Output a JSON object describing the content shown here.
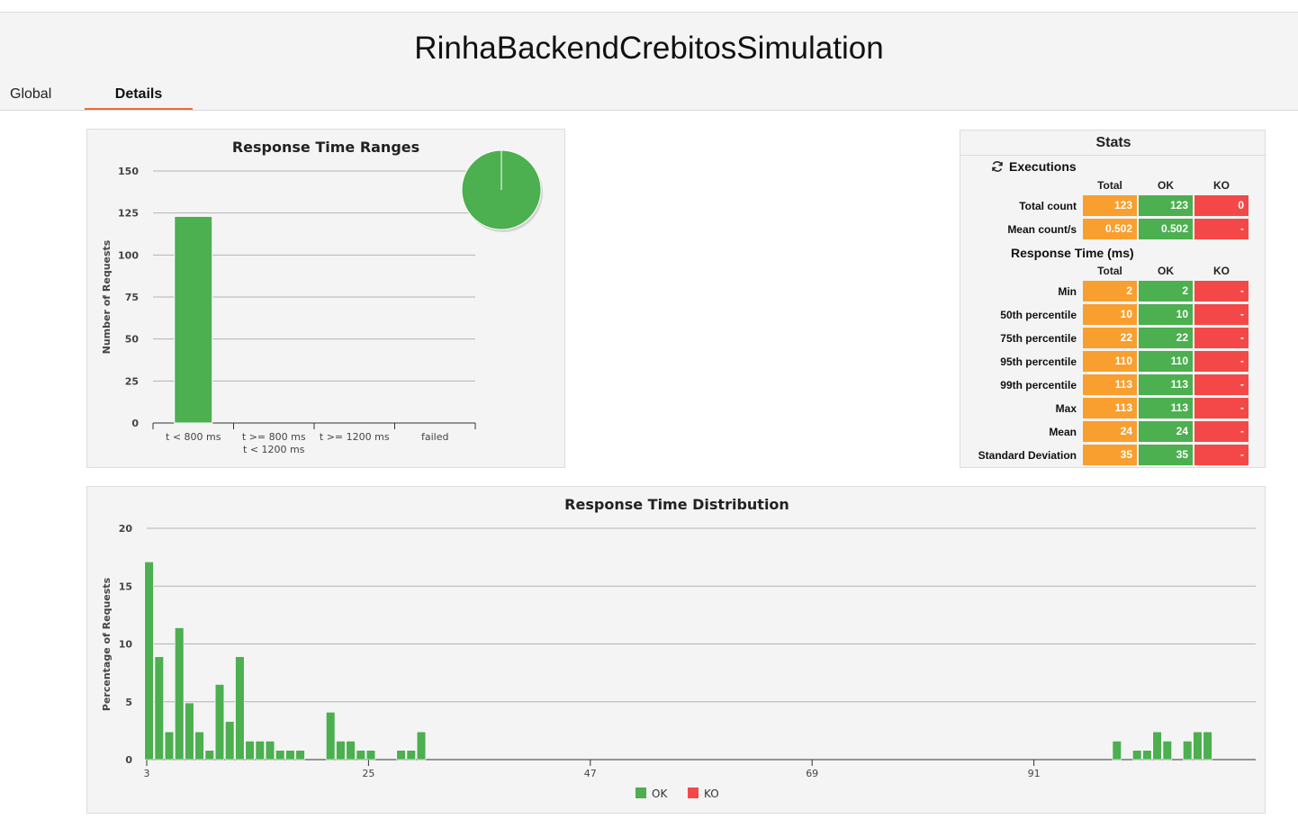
{
  "simulation_title": "RinhaBackendCrebitosSimulation",
  "tabs": [
    {
      "label": "Global"
    },
    {
      "label": "Details"
    }
  ],
  "colors": {
    "ok": "#4caf50",
    "ko": "#f44848",
    "total": "#f89f2f",
    "tab_underline": "#e2703a"
  },
  "stats": {
    "title": "Stats",
    "executions_label": "Executions",
    "response_time_label": "Response Time (ms)",
    "columns": [
      "Total",
      "OK",
      "KO"
    ],
    "executions": [
      {
        "label": "Total count",
        "total": "123",
        "ok": "123",
        "ko": "0"
      },
      {
        "label": "Mean count/s",
        "total": "0.502",
        "ok": "0.502",
        "ko": "-"
      }
    ],
    "response_time": [
      {
        "label": "Min",
        "total": "2",
        "ok": "2",
        "ko": "-"
      },
      {
        "label": "50th percentile",
        "total": "10",
        "ok": "10",
        "ko": "-"
      },
      {
        "label": "75th percentile",
        "total": "22",
        "ok": "22",
        "ko": "-"
      },
      {
        "label": "95th percentile",
        "total": "110",
        "ok": "110",
        "ko": "-"
      },
      {
        "label": "99th percentile",
        "total": "113",
        "ok": "113",
        "ko": "-"
      },
      {
        "label": "Max",
        "total": "113",
        "ok": "113",
        "ko": "-"
      },
      {
        "label": "Mean",
        "total": "24",
        "ok": "24",
        "ko": "-"
      },
      {
        "label": "Standard Deviation",
        "total": "35",
        "ok": "35",
        "ko": "-"
      }
    ]
  },
  "chart_data": [
    {
      "type": "bar",
      "title": "Response Time Ranges",
      "ylabel": "Number of Requests",
      "xlabel": "",
      "categories": [
        [
          "t < 800 ms"
        ],
        [
          "t >= 800 ms",
          "t < 1200 ms"
        ],
        [
          "t >= 1200 ms"
        ],
        [
          "failed"
        ]
      ],
      "values": [
        123,
        0,
        0,
        0
      ],
      "ylim": [
        0,
        150
      ],
      "yticks": [
        0,
        25,
        50,
        75,
        100,
        125,
        150
      ],
      "grid": true,
      "inset_pie": {
        "type": "pie",
        "slices": [
          {
            "label": "t < 800 ms",
            "value": 123,
            "color": "#4caf50"
          }
        ]
      }
    },
    {
      "type": "bar",
      "title": "Response Time Distribution",
      "ylabel": "Percentage of Requests",
      "xlabel": "",
      "ylim": [
        0,
        20
      ],
      "yticks": [
        0,
        5,
        10,
        15,
        20
      ],
      "xlim": [
        2.5,
        112.5
      ],
      "xticks": [
        3,
        25,
        47,
        69,
        91
      ],
      "grid": true,
      "legend": {
        "position": "bottom",
        "items": [
          {
            "label": "OK",
            "color": "#4caf50"
          },
          {
            "label": "KO",
            "color": "#f44848"
          }
        ]
      },
      "series": [
        {
          "name": "OK",
          "x": [
            3,
            4,
            5,
            6,
            7,
            8,
            9,
            10,
            11,
            12,
            13,
            14,
            15,
            16,
            17,
            18,
            21,
            22,
            23,
            24,
            25,
            28,
            29,
            30,
            99,
            101,
            102,
            103,
            104,
            106,
            107,
            108
          ],
          "values": [
            17.1,
            8.9,
            2.4,
            11.4,
            4.9,
            2.4,
            0.8,
            6.5,
            3.3,
            8.9,
            1.6,
            1.6,
            1.6,
            0.8,
            0.8,
            0.8,
            4.1,
            1.6,
            1.6,
            0.8,
            0.8,
            0.8,
            0.8,
            2.4,
            1.6,
            0.8,
            0.8,
            2.4,
            1.6,
            1.6,
            2.4,
            2.4
          ]
        },
        {
          "name": "KO",
          "x": [],
          "values": []
        }
      ]
    }
  ]
}
